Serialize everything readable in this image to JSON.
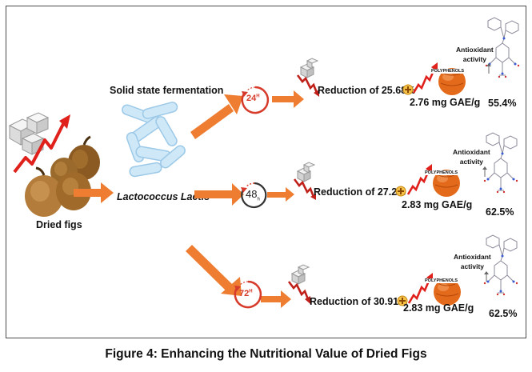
{
  "source_label": "Dried figs",
  "process_label": "Solid state fermentation",
  "organism_label": "Lactococcus Lactis",
  "stages": [
    {
      "time_main": "24",
      "time_sup": "H",
      "reduction": "Reduction of 25.68%",
      "gae": "2.76 mg GAE/g",
      "polyphenols": "POLYPHENOLS",
      "antioxidant_line1": "Antioxidant",
      "antioxidant_line2": "activity",
      "antioxidant_pct": "55.4%"
    },
    {
      "time_main": "48",
      "time_sup": "h",
      "reduction": "Reduction of 27.2%",
      "gae": "2.83 mg GAE/g",
      "polyphenols": "POLYPHENOLS",
      "antioxidant_line1": "Antioxidant",
      "antioxidant_line2": "activity",
      "antioxidant_pct": "62.5%"
    },
    {
      "time_main": "72",
      "time_sup": "H",
      "reduction": "Reduction of 30.91%",
      "gae": "2.83 mg GAE/g",
      "polyphenols": "POLYPHENOLS",
      "antioxidant_line1": "Antioxidant",
      "antioxidant_line2": "activity",
      "antioxidant_pct": "62.5%"
    }
  ],
  "caption": "Figure 4: Enhancing the Nutritional Value of Dried Figs",
  "colors": {
    "arrow": "#ee7d31",
    "trend_up": "#e0201b",
    "trend_down": "#c0201a",
    "sphere": "#e36a1a",
    "bacteria": "#bfe0f5"
  }
}
